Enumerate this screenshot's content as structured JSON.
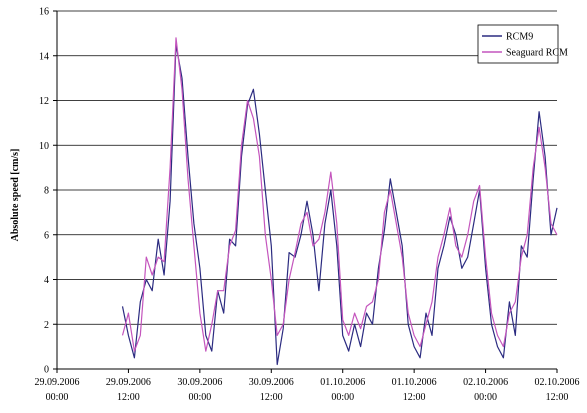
{
  "chart_data": {
    "type": "line",
    "title": "",
    "xlabel": "",
    "ylabel": "Absolute speed [cm/s]",
    "ylim": [
      0,
      16
    ],
    "yticks": [
      0,
      2,
      4,
      6,
      8,
      10,
      12,
      14,
      16
    ],
    "grid": "horizontal",
    "legend": "top-right",
    "xlim": [
      "2006-09-29T00:00",
      "2006-10-02T12:00"
    ],
    "xtick_labels": [
      [
        "29.09.2006",
        "00:00"
      ],
      [
        "29.09.2006",
        "12:00"
      ],
      [
        "30.09.2006",
        "00:00"
      ],
      [
        "30.09.2006",
        "12:00"
      ],
      [
        "01.10.2006",
        "00:00"
      ],
      [
        "01.10.2006",
        "12:00"
      ],
      [
        "02.10.2006",
        "00:00"
      ],
      [
        "02.10.2006",
        "12:00"
      ]
    ],
    "x": [
      "2006-09-29T11:00",
      "2006-09-29T12:00",
      "2006-09-29T13:00",
      "2006-09-29T14:00",
      "2006-09-29T15:00",
      "2006-09-29T16:00",
      "2006-09-29T17:00",
      "2006-09-29T18:00",
      "2006-09-29T19:00",
      "2006-09-29T20:00",
      "2006-09-29T21:00",
      "2006-09-29T22:00",
      "2006-09-29T23:00",
      "2006-09-30T00:00",
      "2006-09-30T01:00",
      "2006-09-30T02:00",
      "2006-09-30T03:00",
      "2006-09-30T04:00",
      "2006-09-30T05:00",
      "2006-09-30T06:00",
      "2006-09-30T07:00",
      "2006-09-30T08:00",
      "2006-09-30T09:00",
      "2006-09-30T10:00",
      "2006-09-30T11:00",
      "2006-09-30T12:00",
      "2006-09-30T13:00",
      "2006-09-30T14:00",
      "2006-09-30T15:00",
      "2006-09-30T16:00",
      "2006-09-30T17:00",
      "2006-09-30T18:00",
      "2006-09-30T19:00",
      "2006-09-30T20:00",
      "2006-09-30T21:00",
      "2006-09-30T22:00",
      "2006-09-30T23:00",
      "2006-10-01T00:00",
      "2006-10-01T01:00",
      "2006-10-01T02:00",
      "2006-10-01T03:00",
      "2006-10-01T04:00",
      "2006-10-01T05:00",
      "2006-10-01T06:00",
      "2006-10-01T07:00",
      "2006-10-01T08:00",
      "2006-10-01T09:00",
      "2006-10-01T10:00",
      "2006-10-01T11:00",
      "2006-10-01T12:00",
      "2006-10-01T13:00",
      "2006-10-01T14:00",
      "2006-10-01T15:00",
      "2006-10-01T16:00",
      "2006-10-01T17:00",
      "2006-10-01T18:00",
      "2006-10-01T19:00",
      "2006-10-01T20:00",
      "2006-10-01T21:00",
      "2006-10-01T22:00",
      "2006-10-01T23:00",
      "2006-10-02T00:00",
      "2006-10-02T01:00",
      "2006-10-02T02:00",
      "2006-10-02T03:00",
      "2006-10-02T04:00",
      "2006-10-02T05:00",
      "2006-10-02T06:00",
      "2006-10-02T07:00",
      "2006-10-02T08:00",
      "2006-10-02T09:00",
      "2006-10-02T10:00",
      "2006-10-02T11:00",
      "2006-10-02T12:00"
    ],
    "series": [
      {
        "name": "RCM9",
        "color": "#2b2b80",
        "values": [
          2.8,
          1.5,
          0.5,
          3.0,
          4.0,
          3.5,
          5.8,
          4.2,
          7.5,
          14.5,
          13.0,
          9.5,
          6.5,
          4.5,
          1.5,
          0.8,
          3.5,
          2.5,
          5.8,
          5.5,
          9.5,
          11.8,
          12.5,
          10.5,
          8.0,
          5.5,
          0.2,
          1.8,
          5.2,
          5.0,
          6.0,
          7.5,
          6.0,
          3.5,
          6.5,
          8.0,
          5.5,
          1.5,
          0.8,
          2.0,
          1.0,
          2.5,
          2.0,
          4.5,
          6.2,
          8.5,
          7.0,
          5.5,
          2.0,
          1.0,
          0.5,
          2.5,
          1.5,
          4.5,
          5.5,
          6.8,
          6.0,
          4.5,
          5.0,
          6.5,
          8.0,
          4.5,
          2.0,
          1.0,
          0.5,
          3.0,
          1.5,
          5.5,
          5.0,
          8.5,
          11.5,
          9.5,
          6.0,
          7.2
        ]
      },
      {
        "name": "Seaguard RCM",
        "color": "#c455bd",
        "values": [
          1.5,
          2.5,
          0.8,
          1.5,
          5.0,
          4.2,
          5.0,
          4.8,
          9.0,
          14.8,
          12.5,
          8.5,
          5.5,
          2.5,
          0.8,
          2.0,
          3.5,
          3.5,
          5.5,
          6.2,
          10.0,
          12.0,
          11.2,
          9.5,
          6.0,
          4.0,
          1.5,
          2.0,
          4.0,
          5.2,
          6.5,
          7.0,
          5.5,
          5.8,
          7.0,
          8.8,
          6.5,
          2.2,
          1.5,
          2.5,
          1.8,
          2.8,
          3.0,
          4.0,
          7.0,
          8.0,
          6.5,
          5.0,
          2.5,
          1.5,
          1.0,
          2.0,
          3.0,
          5.0,
          6.0,
          7.2,
          5.5,
          5.0,
          6.0,
          7.5,
          8.2,
          5.0,
          2.5,
          1.5,
          1.0,
          2.5,
          3.0,
          5.0,
          6.0,
          9.0,
          10.8,
          9.0,
          6.5,
          6.0
        ]
      }
    ]
  }
}
